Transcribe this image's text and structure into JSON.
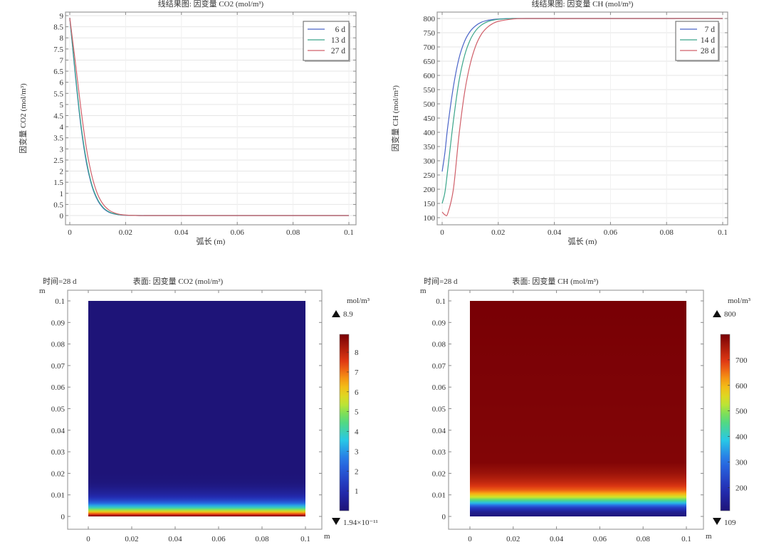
{
  "chart_data": [
    {
      "type": "line",
      "title": "线结果图: 因变量 CO2 (mol/m³)",
      "xlabel": "弧长 (m)",
      "ylabel": "因变量 CO2 (mol/m³)",
      "xlim": [
        0,
        0.1
      ],
      "ylim": [
        0,
        9
      ],
      "xticks": [
        "0",
        "0.02",
        "0.04",
        "0.06",
        "0.08",
        "0.1"
      ],
      "yticks": [
        "0",
        "0.5",
        "1",
        "1.5",
        "2",
        "2.5",
        "3",
        "3.5",
        "4",
        "4.5",
        "5",
        "5.5",
        "6",
        "6.5",
        "7",
        "7.5",
        "8",
        "8.5",
        "9"
      ],
      "grid": true,
      "legend_position": "upper right",
      "x": [
        0,
        0.002,
        0.004,
        0.006,
        0.008,
        0.01,
        0.012,
        0.014,
        0.016,
        0.018,
        0.02,
        0.025,
        0.03,
        0.05,
        0.1
      ],
      "series": [
        {
          "name": "6 d",
          "color": "#4a64c8",
          "values": [
            8.9,
            6.3,
            4.0,
            2.35,
            1.3,
            0.68,
            0.33,
            0.15,
            0.07,
            0.03,
            0.01,
            0.0,
            0.0,
            0.0,
            0.0
          ]
        },
        {
          "name": "13 d",
          "color": "#3aa58a",
          "values": [
            8.9,
            6.4,
            4.1,
            2.45,
            1.35,
            0.72,
            0.36,
            0.17,
            0.08,
            0.035,
            0.015,
            0.0,
            0.0,
            0.0,
            0.0
          ]
        },
        {
          "name": "27 d",
          "color": "#d0606a",
          "values": [
            8.9,
            6.9,
            4.8,
            3.0,
            1.75,
            0.95,
            0.5,
            0.25,
            0.12,
            0.05,
            0.02,
            0.0,
            0.0,
            0.0,
            0.0
          ]
        }
      ]
    },
    {
      "type": "line",
      "title": "线结果图: 因变量 CH (mol/m³)",
      "xlabel": "弧长 (m)",
      "ylabel": "因变量 CH (mol/m³)",
      "xlim": [
        0,
        0.1
      ],
      "ylim": [
        100,
        800
      ],
      "xticks": [
        "0",
        "0.02",
        "0.04",
        "0.06",
        "0.08",
        "0.1"
      ],
      "yticks": [
        "100",
        "150",
        "200",
        "250",
        "300",
        "350",
        "400",
        "450",
        "500",
        "550",
        "600",
        "650",
        "700",
        "750",
        "800"
      ],
      "grid": true,
      "legend_position": "upper right",
      "x": [
        0,
        0.001,
        0.002,
        0.004,
        0.006,
        0.008,
        0.01,
        0.012,
        0.014,
        0.016,
        0.018,
        0.02,
        0.025,
        0.03,
        0.05,
        0.1
      ],
      "series": [
        {
          "name": "7 d",
          "color": "#4a64c8",
          "values": [
            262,
            330,
            420,
            560,
            660,
            720,
            755,
            775,
            787,
            793,
            796,
            798,
            800,
            800,
            800,
            800
          ]
        },
        {
          "name": "14 d",
          "color": "#3aa58a",
          "values": [
            150,
            190,
            270,
            440,
            580,
            670,
            725,
            758,
            777,
            788,
            794,
            797,
            800,
            800,
            800,
            800
          ]
        },
        {
          "name": "28 d",
          "color": "#d0606a",
          "values": [
            120,
            110,
            115,
            200,
            390,
            540,
            640,
            705,
            745,
            768,
            782,
            790,
            798,
            800,
            800,
            800
          ]
        }
      ]
    },
    {
      "type": "heatmap",
      "time_label": "时间=28 d",
      "title": "表面: 因变量 CO2 (mol/m³)",
      "xunit": "m",
      "yunit": "m",
      "xlim": [
        0,
        0.1
      ],
      "ylim": [
        0,
        0.1
      ],
      "xticks": [
        "0",
        "0.02",
        "0.04",
        "0.06",
        "0.08",
        "0.1"
      ],
      "yticks": [
        "0",
        "0.01",
        "0.02",
        "0.03",
        "0.04",
        "0.05",
        "0.06",
        "0.07",
        "0.08",
        "0.09",
        "0.1"
      ],
      "colorbar": {
        "unit": "mol/m³",
        "max_label": "8.9",
        "min_label": "1.94×10⁻¹¹",
        "ticks": [
          "1",
          "2",
          "3",
          "4",
          "5",
          "6",
          "7",
          "8"
        ],
        "range": [
          0,
          8.9
        ],
        "colormap": "rainbow"
      },
      "profile_y": [
        0,
        0.002,
        0.004,
        0.006,
        0.008,
        0.01,
        0.015,
        0.02,
        0.1
      ],
      "profile_values": [
        8.9,
        6.2,
        4.0,
        2.4,
        1.3,
        0.7,
        0.1,
        0.0,
        0.0
      ]
    },
    {
      "type": "heatmap",
      "time_label": "时间=28 d",
      "title": "表面: 因变量 CH (mol/m³)",
      "xunit": "m",
      "yunit": "m",
      "xlim": [
        0,
        0.1
      ],
      "ylim": [
        0,
        0.1
      ],
      "xticks": [
        "0",
        "0.02",
        "0.04",
        "0.06",
        "0.08",
        "0.1"
      ],
      "yticks": [
        "0",
        "0.01",
        "0.02",
        "0.03",
        "0.04",
        "0.05",
        "0.06",
        "0.07",
        "0.08",
        "0.09",
        "0.1"
      ],
      "colorbar": {
        "unit": "mol/m³",
        "max_label": "800",
        "min_label": "109",
        "ticks": [
          "200",
          "300",
          "400",
          "500",
          "600",
          "700"
        ],
        "range": [
          109,
          800
        ],
        "colormap": "rainbow"
      },
      "profile_y": [
        0,
        0.002,
        0.004,
        0.006,
        0.008,
        0.01,
        0.012,
        0.015,
        0.02,
        0.025,
        0.1
      ],
      "profile_values": [
        115,
        140,
        220,
        360,
        480,
        590,
        660,
        720,
        765,
        790,
        800
      ]
    }
  ]
}
